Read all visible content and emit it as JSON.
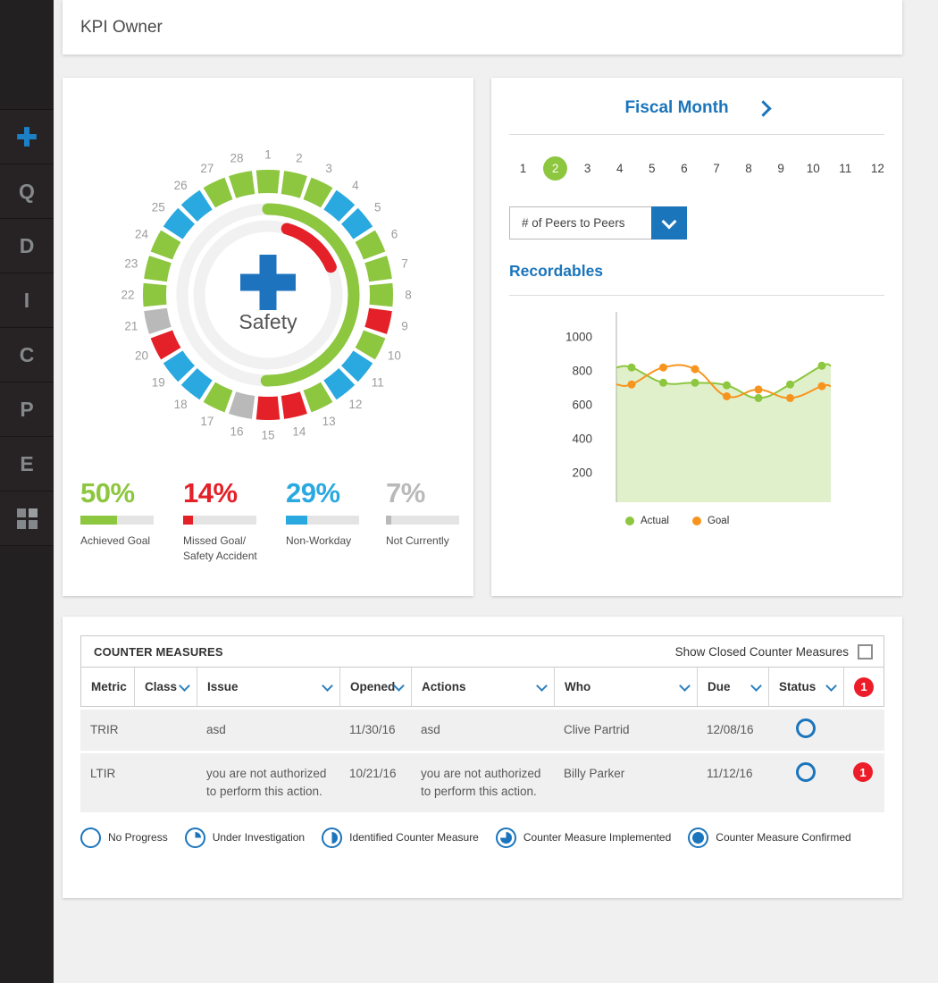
{
  "header": {
    "title": "KPI Owner"
  },
  "sidebar": {
    "items": [
      {
        "id": "add",
        "icon": "plus-icon"
      },
      {
        "id": "q",
        "label": "Q"
      },
      {
        "id": "d",
        "label": "D"
      },
      {
        "id": "i",
        "label": "I"
      },
      {
        "id": "c",
        "label": "C"
      },
      {
        "id": "p",
        "label": "P"
      },
      {
        "id": "e",
        "label": "E"
      },
      {
        "id": "apps",
        "icon": "grid-icon"
      }
    ]
  },
  "colors": {
    "accent_blue": "#1b75bb",
    "light_blue": "#29a9e0",
    "green": "#8dc63f",
    "red": "#e42128",
    "gray": "#b9b9b9",
    "badge_red": "#ed1c29"
  },
  "fiscal_month": {
    "title": "Fiscal Month",
    "months": [
      "1",
      "2",
      "3",
      "4",
      "5",
      "6",
      "7",
      "8",
      "9",
      "10",
      "11",
      "12"
    ],
    "selected": "2",
    "metric_selector": {
      "value": "# of Peers to Peers"
    }
  },
  "chart_data": [
    {
      "type": "donut-calendar",
      "title": "Safety",
      "days_in_month": 28,
      "day_status": [
        "achieved",
        "achieved",
        "achieved",
        "nonworkday",
        "nonworkday",
        "achieved",
        "achieved",
        "achieved",
        "missed",
        "achieved",
        "nonworkday",
        "nonworkday",
        "achieved",
        "missed",
        "missed",
        "notcurrent",
        "achieved",
        "nonworkday",
        "nonworkday",
        "missed",
        "notcurrent",
        "achieved",
        "achieved",
        "achieved",
        "nonworkday",
        "nonworkday",
        "achieved",
        "achieved"
      ],
      "status_colors": {
        "achieved": "#8dc63f",
        "missed": "#e42128",
        "nonworkday": "#29a9e0",
        "notcurrent": "#b9b9b9"
      },
      "progress_arcs": [
        {
          "status": "achieved",
          "start_deg": 0,
          "end_deg": 181,
          "radius": 96
        },
        {
          "status": "missed",
          "start_deg": 16,
          "end_deg": 66,
          "radius": 77
        }
      ],
      "stats": [
        {
          "pct": "50%",
          "value": 50,
          "label_lines": [
            "Achieved Goal"
          ],
          "status": "achieved"
        },
        {
          "pct": "14%",
          "value": 14,
          "label_lines": [
            "Missed Goal/",
            "Safety Accident"
          ],
          "status": "missed"
        },
        {
          "pct": "29%",
          "value": 29,
          "label_lines": [
            "Non-Workday"
          ],
          "status": "nonworkday"
        },
        {
          "pct": "7%",
          "value": 7,
          "label_lines": [
            "Not Currently"
          ],
          "status": "notcurrent"
        }
      ]
    },
    {
      "type": "line",
      "title": "Recordables",
      "x": [
        1,
        2,
        3,
        4,
        5,
        6,
        7
      ],
      "series": [
        {
          "name": "Actual",
          "color": "#8dc63f",
          "values": [
            820,
            730,
            730,
            715,
            640,
            720,
            830
          ],
          "area": true
        },
        {
          "name": "Goal",
          "color": "#f7941e",
          "values": [
            720,
            820,
            810,
            650,
            690,
            640,
            710
          ],
          "area": false
        }
      ],
      "ylim": [
        0,
        1150
      ],
      "yticks": [
        200,
        400,
        600,
        800,
        1000
      ],
      "grid": false,
      "legend_position": "bottom"
    }
  ],
  "counter_measures": {
    "title": "COUNTER MEASURES",
    "show_closed_label": "Show Closed Counter Measures",
    "show_closed_checked": false,
    "header_badge": "1",
    "columns": [
      {
        "label": "Metric",
        "sortable": false
      },
      {
        "label": "Class",
        "sortable": true
      },
      {
        "label": "Issue",
        "sortable": true
      },
      {
        "label": "Opened",
        "sortable": true
      },
      {
        "label": "Actions",
        "sortable": true
      },
      {
        "label": "Who",
        "sortable": true
      },
      {
        "label": "Due",
        "sortable": true
      },
      {
        "label": "Status",
        "sortable": true
      }
    ],
    "rows": [
      {
        "metric": "TRIR",
        "class": "",
        "issue": "asd",
        "opened": "11/30/16",
        "actions": "asd",
        "who": "Clive Partrid",
        "due": "12/08/16",
        "status": "no-progress",
        "badge": ""
      },
      {
        "metric": "LTIR",
        "class": "",
        "issue": "you are not authorized to perform this action.",
        "opened": "10/21/16",
        "actions": "you are not authorized to perform this action.",
        "who": "Billy Parker",
        "due": "11/12/16",
        "status": "no-progress",
        "badge": "1"
      }
    ],
    "status_legend": [
      {
        "label": "No Progress",
        "fill_pct": 0
      },
      {
        "label": "Under Investigation",
        "fill_pct": 25
      },
      {
        "label": "Identified Counter Measure",
        "fill_pct": 50
      },
      {
        "label": "Counter Measure Implemented",
        "fill_pct": 75
      },
      {
        "label": "Counter Measure Confirmed",
        "fill_pct": 100
      }
    ]
  }
}
